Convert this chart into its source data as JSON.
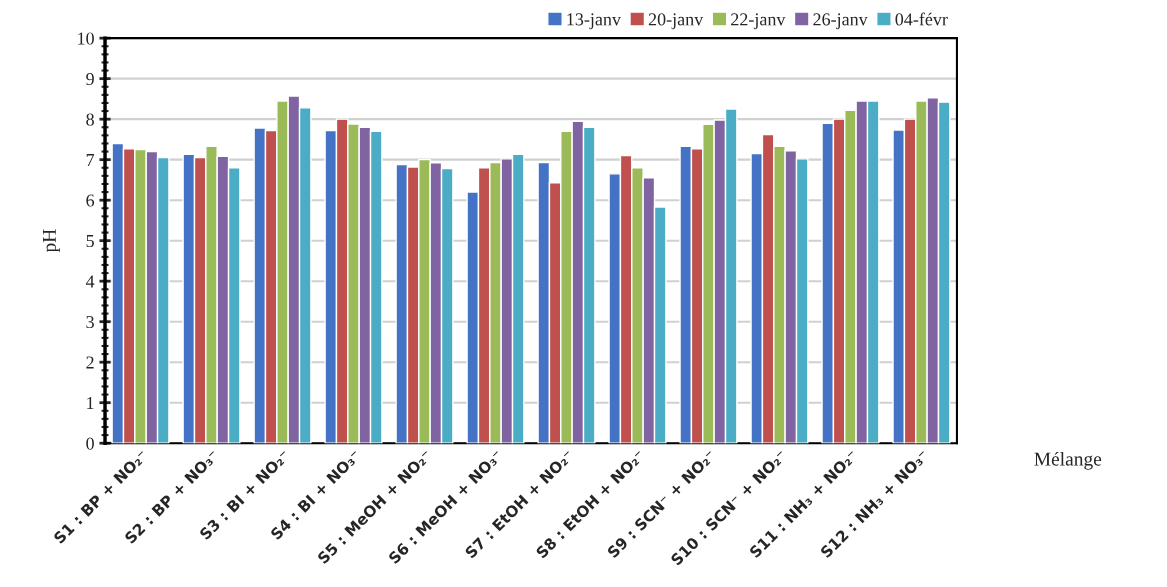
{
  "chart_data": {
    "type": "bar",
    "ylabel": "pH",
    "xlabel": "Mélange",
    "categories": [
      "S1 : BP + NO₂⁻",
      "S2 : BP + NO₃⁻",
      "S3 : BI + NO₂⁻",
      "S4 : BI + NO₃⁻",
      "S5 : MeOH + NO₂⁻",
      "S6 : MeOH + NO₃⁻",
      "S7 : EtOH + NO₂⁻",
      "S8 : EtOH + NO₂⁻",
      "S9 : SCN⁻ + NO₂⁻",
      "S10 : SCN⁻ + NO₂⁻",
      "S11 : NH₃ + NO₂⁻",
      "S12 : NH₃ + NO₃⁻"
    ],
    "series": [
      {
        "name": "13-janv",
        "color": "#4472c4",
        "values": [
          7.4,
          7.13,
          7.78,
          7.72,
          6.88,
          6.2,
          6.93,
          6.65,
          7.33,
          7.15,
          7.9,
          7.73
        ]
      },
      {
        "name": "20-janv",
        "color": "#c0504d",
        "values": [
          7.27,
          7.05,
          7.72,
          8.0,
          6.82,
          6.8,
          6.43,
          7.1,
          7.27,
          7.62,
          8.0,
          8.0
        ]
      },
      {
        "name": "22-janv",
        "color": "#9bbb59",
        "values": [
          7.25,
          7.33,
          8.45,
          7.88,
          7.0,
          6.93,
          7.7,
          6.8,
          7.87,
          7.33,
          8.22,
          8.45
        ]
      },
      {
        "name": "26-janv",
        "color": "#8064a2",
        "values": [
          7.2,
          7.08,
          8.57,
          7.8,
          6.92,
          7.02,
          7.95,
          6.55,
          7.98,
          7.22,
          8.45,
          8.53
        ]
      },
      {
        "name": "04-févr",
        "color": "#4bacc6",
        "values": [
          7.05,
          6.8,
          8.28,
          7.7,
          6.78,
          7.13,
          7.8,
          5.83,
          8.25,
          7.02,
          8.45,
          8.42
        ]
      }
    ],
    "ylim": [
      0,
      10
    ],
    "yticks": [
      0,
      1,
      2,
      3,
      4,
      5,
      6,
      7,
      8,
      9,
      10
    ],
    "grid": "y",
    "legend": "top right"
  }
}
